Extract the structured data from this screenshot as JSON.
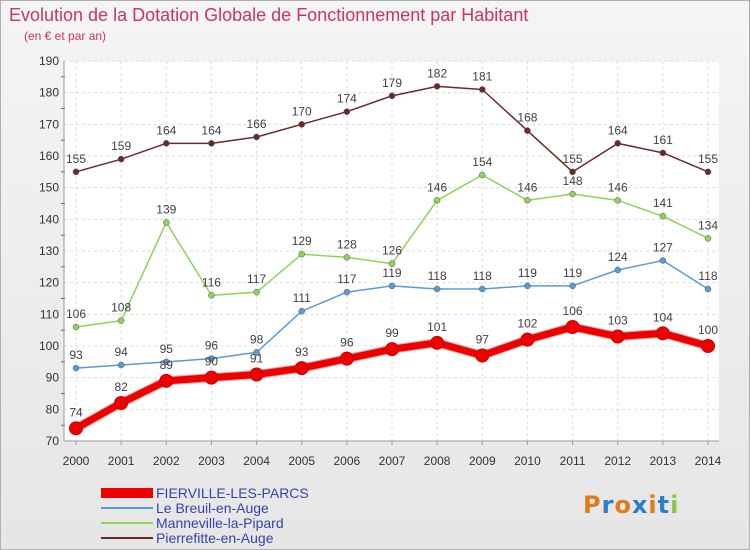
{
  "title": "Evolution de la Dotation Globale de Fonctionnement par Habitant",
  "subtitle": "(en € et par an)",
  "logo": {
    "text": "Proxiti",
    "colors": [
      "#e07a1a",
      "#2a7fc8",
      "#e07a1a",
      "#2a7fc8",
      "#e07a1a",
      "#2a7fc8",
      "#8cc63f"
    ]
  },
  "chart_data": {
    "type": "line",
    "title": "Evolution de la Dotation Globale de Fonctionnement par Habitant",
    "subtitle": "(en € et par an)",
    "xlabel": "",
    "ylabel": "",
    "ylim": [
      70,
      190
    ],
    "y_ticks": [
      70,
      80,
      90,
      100,
      110,
      120,
      130,
      140,
      150,
      160,
      170,
      180,
      190
    ],
    "grid": true,
    "legend_position": "bottom-left",
    "categories": [
      "2000",
      "2001",
      "2002",
      "2003",
      "2004",
      "2005",
      "2006",
      "2007",
      "2008",
      "2009",
      "2010",
      "2011",
      "2012",
      "2013",
      "2014"
    ],
    "series": [
      {
        "name": "FIERVILLE-LES-PARCS",
        "color": "#ee0000",
        "values": [
          74,
          82,
          89,
          90,
          91,
          93,
          96,
          99,
          101,
          97,
          102,
          106,
          103,
          104,
          100
        ]
      },
      {
        "name": "Le Breuil-en-Auge",
        "color": "#5b9bd5",
        "values": [
          93,
          94,
          95,
          96,
          98,
          111,
          117,
          119,
          118,
          118,
          119,
          119,
          124,
          127,
          118
        ]
      },
      {
        "name": "Manneville-la-Pipard",
        "color": "#8ed35a",
        "values": [
          106,
          108,
          139,
          116,
          117,
          129,
          128,
          126,
          146,
          154,
          146,
          148,
          146,
          141,
          134
        ]
      },
      {
        "name": "Pierrefitte-en-Auge",
        "color": "#6b2a2a",
        "values": [
          155,
          159,
          164,
          164,
          166,
          170,
          174,
          179,
          182,
          181,
          168,
          155,
          164,
          161,
          155
        ]
      }
    ]
  }
}
